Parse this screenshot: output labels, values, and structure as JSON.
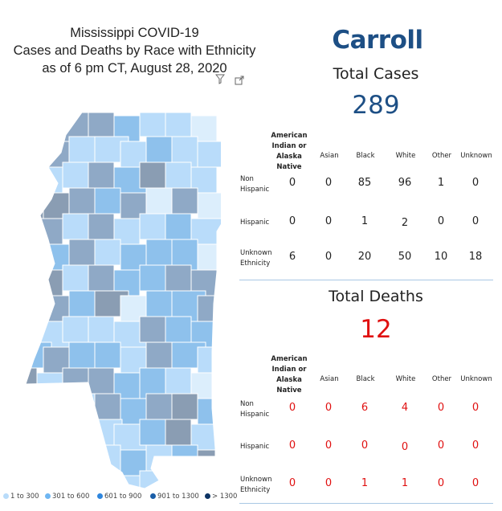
{
  "title": {
    "line1": "Mississippi COVID-19",
    "line2": "Cases and Deaths by Race with Ethnicity",
    "line3": "as of 6 pm CT, August 28, 2020"
  },
  "icons": [
    "filter-icon",
    "expand-icon"
  ],
  "county": "Carroll",
  "cases": {
    "label": "Total Cases",
    "total": "289",
    "columns": [
      "American Indian or Alaska Native",
      "Asian",
      "Black",
      "White",
      "Other",
      "Unknown"
    ],
    "column_label_lines": [
      "American",
      "Indian or",
      "Alaska Native"
    ],
    "rows": [
      {
        "label_lines": [
          "Non",
          "Hispanic"
        ],
        "values": [
          "0",
          "0",
          "85",
          "96",
          "1",
          "0"
        ]
      },
      {
        "label_lines": [
          "Hispanic"
        ],
        "values": [
          "0",
          "0",
          "1",
          "2",
          "0",
          "0"
        ]
      },
      {
        "label_lines": [
          "Unknown",
          "Ethnicity"
        ],
        "values": [
          "6",
          "0",
          "20",
          "50",
          "10",
          "18"
        ]
      }
    ]
  },
  "deaths": {
    "label": "Total Deaths",
    "total": "12",
    "columns": [
      "American Indian or Alaska Native",
      "Asian",
      "Black",
      "White",
      "Other",
      "Unknown"
    ],
    "column_label_lines": [
      "American",
      "Indian or",
      "Alaska Native"
    ],
    "rows": [
      {
        "label_lines": [
          "Non",
          "Hispanic"
        ],
        "values": [
          "0",
          "0",
          "6",
          "4",
          "0",
          "0"
        ]
      },
      {
        "label_lines": [
          "Hispanic"
        ],
        "values": [
          "0",
          "0",
          "0",
          "0",
          "0",
          "0"
        ]
      },
      {
        "label_lines": [
          "Unknown",
          "Ethnicity"
        ],
        "values": [
          "0",
          "0",
          "1",
          "1",
          "0",
          "0"
        ]
      }
    ]
  },
  "legend": [
    {
      "label": "1 to 300",
      "color": "#b9dcfa"
    },
    {
      "label": "301 to 600",
      "color": "#6fb6f2"
    },
    {
      "label": "601 to 900",
      "color": "#2e86de"
    },
    {
      "label": "901 to 1300",
      "color": "#1a5ea8"
    },
    {
      "label": "> 1300",
      "color": "#0d3464"
    }
  ],
  "map_colors": {
    "lightest": "#dceefc",
    "light": "#b9dcfa",
    "medium": "#8ec1ec",
    "steel": "#8fa9c6",
    "dark": "#8a9db3",
    "border": "#ffffff"
  }
}
